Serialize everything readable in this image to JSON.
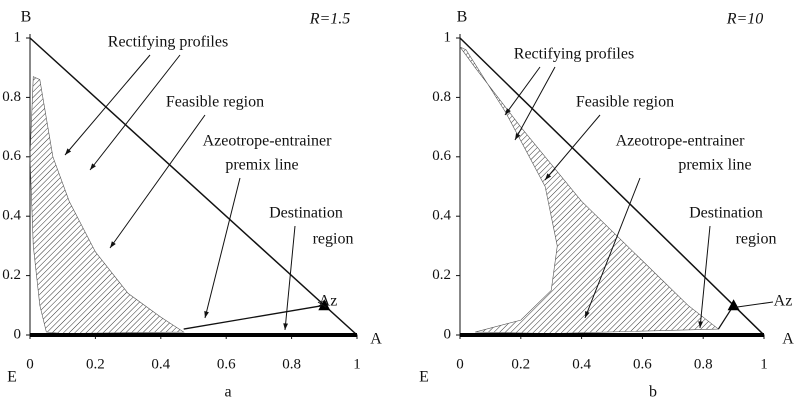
{
  "chart_data": [
    {
      "type": "line",
      "r_label": "R=1.5",
      "subplot_label": "a",
      "vertex_labels": [
        "B",
        "A",
        "E"
      ],
      "point_label": "Az",
      "annotations": [
        "Rectifying profiles",
        "Feasible region",
        "Azeotrope-entrainer",
        "premix line",
        "Destination",
        "region"
      ],
      "xlim": [
        0,
        1
      ],
      "ylim": [
        0,
        1
      ],
      "xticks": [
        0,
        0.2,
        0.4,
        0.6,
        0.8,
        1
      ],
      "yticks": [
        0,
        0.2,
        0.4,
        0.6,
        0.8,
        1
      ],
      "triangle_edge": {
        "x": [
          0,
          1
        ],
        "values": [
          1,
          0
        ]
      },
      "premix_line": {
        "x": [
          0.47,
          0.9
        ],
        "values": [
          0.02,
          0.1
        ]
      },
      "destination": {
        "x": [
          0,
          1
        ],
        "values": [
          0,
          0
        ]
      },
      "azeotrope": {
        "x": [
          0.9
        ],
        "values": [
          0.1
        ]
      },
      "region": {
        "x": [
          0.01,
          0.03,
          0.07,
          0.12,
          0.2,
          0.3,
          0.4,
          0.47,
          0.1,
          0.05,
          0.03,
          0.01,
          0.0
        ],
        "values": [
          0.87,
          0.86,
          0.6,
          0.45,
          0.28,
          0.14,
          0.06,
          0.01,
          0.005,
          0.01,
          0.1,
          0.3,
          0.6
        ]
      }
    },
    {
      "type": "line",
      "r_label": "R=10",
      "subplot_label": "b",
      "vertex_labels": [
        "B",
        "A",
        "E"
      ],
      "point_label": "Az",
      "annotations": [
        "Rectifying profiles",
        "Feasible region",
        "Azeotrope-entrainer",
        "premix line",
        "Destination",
        "region"
      ],
      "xlim": [
        0,
        1
      ],
      "ylim": [
        0,
        1
      ],
      "xticks": [
        0,
        0.2,
        0.4,
        0.6,
        0.8,
        1
      ],
      "yticks": [
        0,
        0.2,
        0.4,
        0.6,
        0.8,
        1
      ],
      "triangle_edge": {
        "x": [
          0,
          1
        ],
        "values": [
          1,
          0
        ]
      },
      "premix_line": {
        "x": [
          0.85,
          0.9
        ],
        "values": [
          0.02,
          0.1
        ]
      },
      "destination": {
        "x": [
          0,
          1
        ],
        "values": [
          0,
          0
        ]
      },
      "azeotrope": {
        "x": [
          0.9
        ],
        "values": [
          0.1
        ]
      },
      "region": {
        "x": [
          0.0,
          0.05,
          0.2,
          0.4,
          0.6,
          0.75,
          0.85,
          0.3,
          0.05,
          0.2,
          0.3,
          0.32,
          0.28,
          0.15,
          0.02
        ],
        "values": [
          0.97,
          0.9,
          0.7,
          0.45,
          0.25,
          0.1,
          0.02,
          0.005,
          0.01,
          0.05,
          0.15,
          0.3,
          0.5,
          0.75,
          0.96
        ]
      }
    }
  ]
}
